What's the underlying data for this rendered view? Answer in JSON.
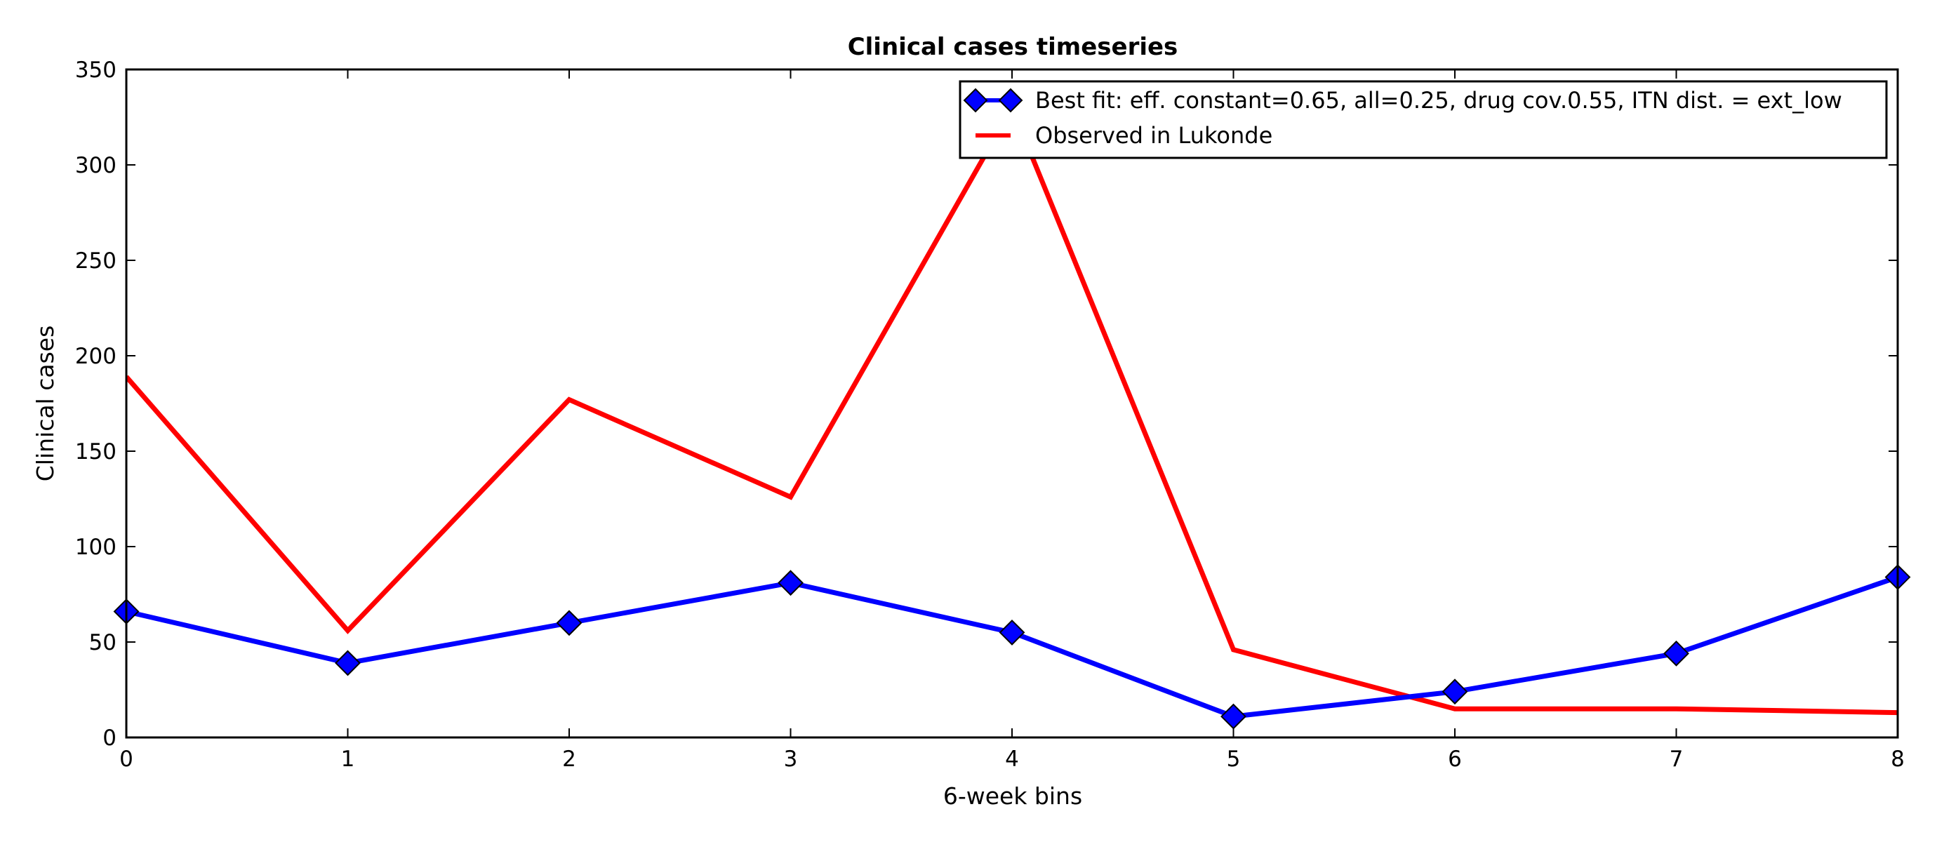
{
  "chart_data": {
    "type": "line",
    "title": "Clinical cases timeseries",
    "xlabel": "6-week bins",
    "ylabel": "Clinical cases",
    "x": [
      0,
      1,
      2,
      3,
      4,
      5,
      6,
      7,
      8
    ],
    "xlim": [
      0,
      8
    ],
    "ylim": [
      0,
      350
    ],
    "xticks": [
      0,
      1,
      2,
      3,
      4,
      5,
      6,
      7,
      8
    ],
    "yticks": [
      0,
      50,
      100,
      150,
      200,
      250,
      300,
      350
    ],
    "grid": false,
    "legend_position": "top-right",
    "series": [
      {
        "name": "Best fit: eff. constant=0.65, all=0.25, drug cov.0.55, ITN dist. = ext_low",
        "values": [
          66,
          39,
          60,
          81,
          55,
          11,
          24,
          44,
          84
        ],
        "color": "#0000ff",
        "marker": "diamond"
      },
      {
        "name": "Observed in Lukonde",
        "values": [
          189,
          56,
          177,
          126,
          330,
          46,
          15,
          15,
          13
        ],
        "color": "#ff0000",
        "marker": "none"
      }
    ]
  }
}
